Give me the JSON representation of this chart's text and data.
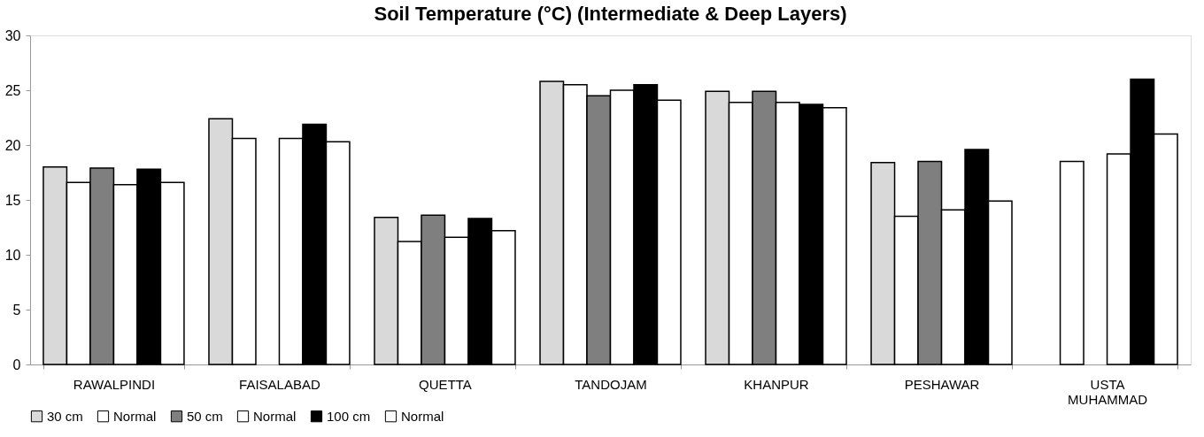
{
  "chart_data": {
    "type": "bar",
    "title": "Soil Temperature (°C) (Intermediate & Deep Layers)",
    "categories": [
      "RAWALPINDI",
      "FAISALABAD",
      "QUETTA",
      "TANDOJAM",
      "KHANPUR",
      "PESHAWAR",
      "USTA MUHAMMAD"
    ],
    "series": [
      {
        "name": "30 cm",
        "color": "#d9d9d9",
        "values": [
          18.0,
          22.4,
          13.4,
          25.8,
          24.9,
          18.4,
          null
        ]
      },
      {
        "name": "Normal",
        "color": "#ffffff",
        "values": [
          16.6,
          20.6,
          11.2,
          25.5,
          23.9,
          13.5,
          18.5
        ]
      },
      {
        "name": "50 cm",
        "color": "#7f7f7f",
        "values": [
          17.9,
          null,
          13.6,
          24.5,
          24.9,
          18.5,
          null
        ]
      },
      {
        "name": "Normal",
        "color": "#ffffff",
        "values": [
          16.4,
          20.6,
          11.6,
          25.0,
          23.9,
          14.1,
          19.2
        ]
      },
      {
        "name": "100 cm",
        "color": "#000000",
        "values": [
          17.8,
          21.9,
          13.3,
          25.5,
          23.7,
          19.6,
          26.0
        ]
      },
      {
        "name": "Normal",
        "color": "#ffffff",
        "values": [
          16.6,
          20.3,
          12.2,
          24.1,
          23.4,
          14.9,
          21.0
        ]
      }
    ],
    "ylim": [
      0,
      30
    ],
    "yticks": [
      0,
      5,
      10,
      15,
      20,
      25,
      30
    ],
    "grid": false,
    "legend": "bottom"
  }
}
